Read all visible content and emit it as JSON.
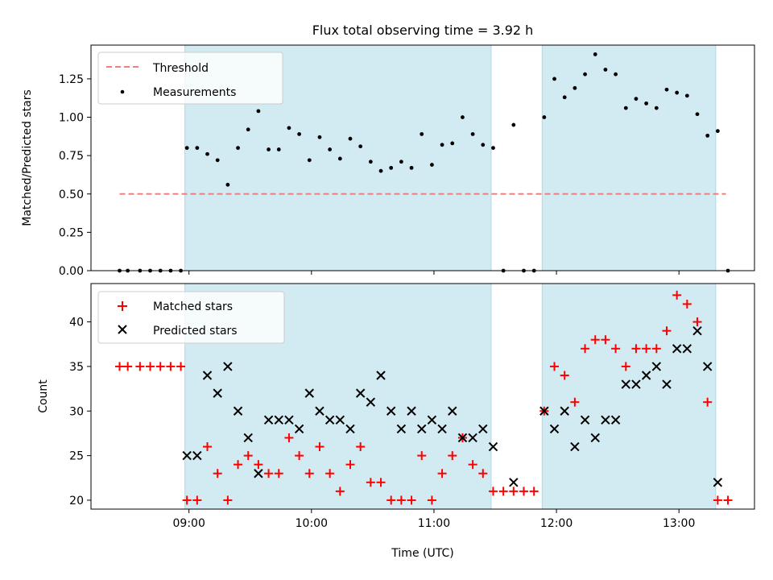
{
  "title": "Flux total observing time = 3.92 h",
  "xlabel": "Time (UTC)",
  "colors": {
    "shade": "#add8e6",
    "threshold": "#f08080",
    "matched": "#ff0000",
    "predicted": "#000000",
    "points": "#000000"
  },
  "chart_data": [
    {
      "type": "scatter",
      "title": "Flux total observing time = 3.92 h",
      "ylabel": "Matched/Predicted stars",
      "xlim": [
        "08:12",
        "13:37"
      ],
      "ylim": [
        0,
        1.47
      ],
      "yticks": [
        "0.00",
        "0.25",
        "0.50",
        "0.75",
        "1.00",
        "1.25"
      ],
      "ytick_values": [
        0,
        0.25,
        0.5,
        0.75,
        1.0,
        1.25
      ],
      "xticks": [
        "09:00",
        "10:00",
        "11:00",
        "12:00",
        "13:00"
      ],
      "grid": false,
      "legend": {
        "position": "top-left",
        "entries": [
          "Threshold",
          "Measurements"
        ]
      },
      "shaded_intervals": [
        [
          "08:58",
          "11:28"
        ],
        [
          "11:53",
          "13:18"
        ]
      ],
      "threshold": {
        "name": "Threshold",
        "value": 0.5,
        "x_range": [
          "08:26",
          "13:23"
        ]
      },
      "series": [
        {
          "name": "Measurements",
          "x": [
            "08:26",
            "08:30",
            "08:36",
            "08:41",
            "08:46",
            "08:51",
            "08:56",
            "08:59",
            "09:04",
            "09:09",
            "09:14",
            "09:19",
            "09:24",
            "09:29",
            "09:34",
            "09:39",
            "09:44",
            "09:49",
            "09:54",
            "09:59",
            "10:04",
            "10:09",
            "10:14",
            "10:19",
            "10:24",
            "10:29",
            "10:34",
            "10:39",
            "10:44",
            "10:49",
            "10:54",
            "10:59",
            "11:04",
            "11:09",
            "11:14",
            "11:19",
            "11:24",
            "11:29",
            "11:34",
            "11:39",
            "11:44",
            "11:49",
            "11:54",
            "11:59",
            "12:04",
            "12:09",
            "12:14",
            "12:19",
            "12:24",
            "12:29",
            "12:34",
            "12:39",
            "12:44",
            "12:49",
            "12:54",
            "12:59",
            "13:04",
            "13:09",
            "13:14",
            "13:19",
            "13:24"
          ],
          "y": [
            0,
            0,
            0,
            0,
            0,
            0,
            0,
            0.8,
            0.8,
            0.76,
            0.72,
            0.56,
            0.8,
            0.92,
            1.04,
            0.79,
            0.79,
            0.93,
            0.89,
            0.72,
            0.87,
            0.79,
            0.73,
            0.86,
            0.81,
            0.71,
            0.65,
            0.67,
            0.71,
            0.67,
            0.89,
            0.69,
            0.82,
            0.83,
            1.0,
            0.89,
            0.82,
            0.8,
            0,
            0.95,
            0,
            0,
            1.0,
            1.25,
            1.13,
            1.19,
            1.28,
            1.41,
            1.31,
            1.28,
            1.06,
            1.12,
            1.09,
            1.06,
            1.18,
            1.16,
            1.14,
            1.02,
            0.88,
            0.91,
            0
          ]
        }
      ]
    },
    {
      "type": "scatter",
      "ylabel": "Count",
      "xlabel": "Time (UTC)",
      "xlim": [
        "08:12",
        "13:37"
      ],
      "ylim": [
        19,
        44.3
      ],
      "yticks": [
        "20",
        "25",
        "30",
        "35",
        "40"
      ],
      "ytick_values": [
        20,
        25,
        30,
        35,
        40
      ],
      "xticks": [
        "09:00",
        "10:00",
        "11:00",
        "12:00",
        "13:00"
      ],
      "grid": false,
      "legend": {
        "position": "top-left",
        "entries": [
          "Matched stars",
          "Predicted stars"
        ]
      },
      "shaded_intervals": [
        [
          "08:58",
          "11:28"
        ],
        [
          "11:53",
          "13:18"
        ]
      ],
      "series": [
        {
          "name": "Matched stars",
          "marker": "+",
          "x": [
            "08:26",
            "08:30",
            "08:36",
            "08:41",
            "08:46",
            "08:51",
            "08:56",
            "08:59",
            "09:04",
            "09:09",
            "09:14",
            "09:19",
            "09:24",
            "09:29",
            "09:34",
            "09:39",
            "09:44",
            "09:49",
            "09:54",
            "09:59",
            "10:04",
            "10:09",
            "10:14",
            "10:19",
            "10:24",
            "10:29",
            "10:34",
            "10:39",
            "10:44",
            "10:49",
            "10:54",
            "10:59",
            "11:04",
            "11:09",
            "11:14",
            "11:19",
            "11:24",
            "11:29",
            "11:34",
            "11:39",
            "11:44",
            "11:49",
            "11:54",
            "11:59",
            "12:04",
            "12:09",
            "12:14",
            "12:19",
            "12:24",
            "12:29",
            "12:34",
            "12:39",
            "12:44",
            "12:49",
            "12:54",
            "12:59",
            "13:04",
            "13:09",
            "13:14",
            "13:19",
            "13:24"
          ],
          "y": [
            35,
            35,
            35,
            35,
            35,
            35,
            35,
            20,
            20,
            26,
            23,
            20,
            24,
            25,
            24,
            23,
            23,
            27,
            25,
            23,
            26,
            23,
            21,
            24,
            26,
            22,
            22,
            20,
            20,
            20,
            25,
            20,
            23,
            25,
            27,
            24,
            23,
            21,
            21,
            21,
            21,
            21,
            30,
            35,
            34,
            31,
            37,
            38,
            38,
            37,
            35,
            37,
            37,
            37,
            39,
            43,
            42,
            40,
            31,
            20,
            20
          ]
        },
        {
          "name": "Predicted stars",
          "marker": "x",
          "x": [
            "08:59",
            "09:04",
            "09:09",
            "09:14",
            "09:19",
            "09:24",
            "09:29",
            "09:34",
            "09:39",
            "09:44",
            "09:49",
            "09:54",
            "09:59",
            "10:04",
            "10:09",
            "10:14",
            "10:19",
            "10:24",
            "10:29",
            "10:34",
            "10:39",
            "10:44",
            "10:49",
            "10:54",
            "10:59",
            "11:04",
            "11:09",
            "11:14",
            "11:19",
            "11:24",
            "11:29",
            "11:39",
            "11:54",
            "11:59",
            "12:04",
            "12:09",
            "12:14",
            "12:19",
            "12:24",
            "12:29",
            "12:34",
            "12:39",
            "12:44",
            "12:49",
            "12:54",
            "12:59",
            "13:04",
            "13:09",
            "13:14",
            "13:19"
          ],
          "y": [
            25,
            25,
            34,
            32,
            35,
            30,
            27,
            23,
            29,
            29,
            29,
            28,
            32,
            30,
            29,
            29,
            28,
            32,
            31,
            34,
            30,
            28,
            30,
            28,
            29,
            28,
            30,
            27,
            27,
            28,
            26,
            22,
            30,
            28,
            30,
            26,
            29,
            27,
            29,
            29,
            33,
            33,
            34,
            35,
            33,
            37,
            37,
            39,
            35,
            22
          ]
        }
      ]
    }
  ]
}
